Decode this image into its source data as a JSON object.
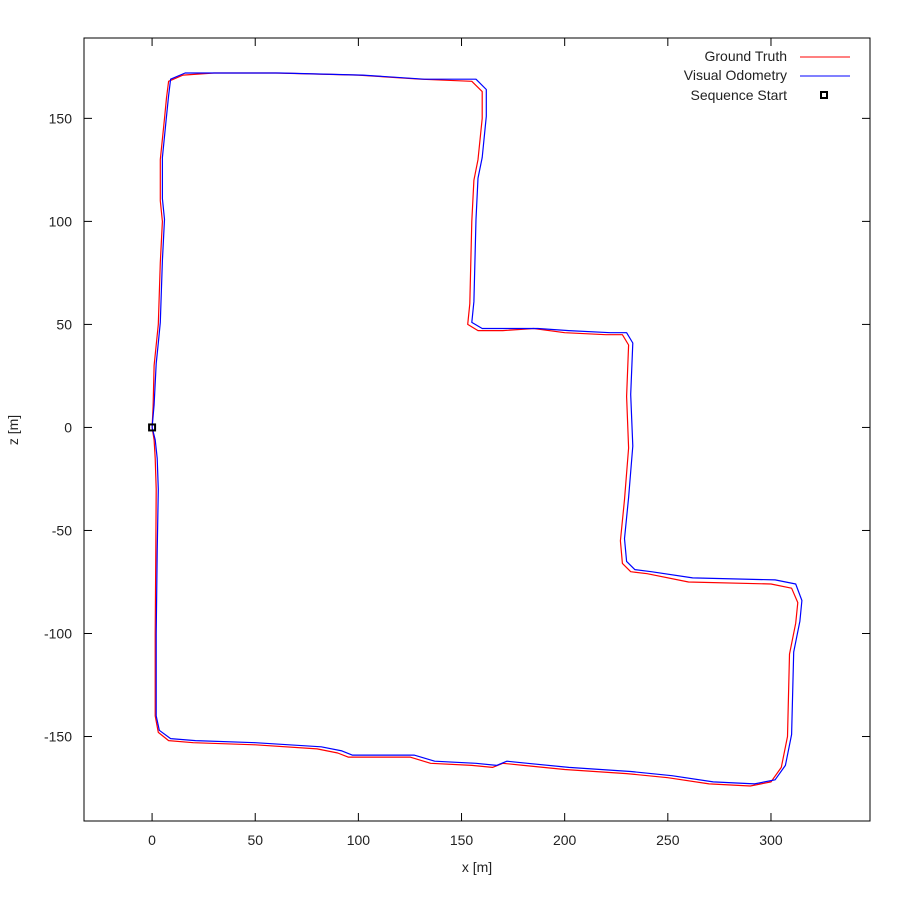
{
  "chart_data": {
    "type": "line",
    "xlabel": "x [m]",
    "ylabel": "z [m]",
    "xlim": [
      -33,
      348
    ],
    "ylim": [
      -191,
      189
    ],
    "x_ticks": [
      0,
      50,
      100,
      150,
      200,
      250,
      300
    ],
    "y_ticks": [
      -150,
      -100,
      -50,
      0,
      50,
      100,
      150
    ],
    "x_tick_labels": [
      "0",
      "50",
      "100",
      "150",
      "200",
      "250",
      "300"
    ],
    "y_tick_labels": [
      "-150",
      "-100",
      "-50",
      "0",
      "50",
      "100",
      "150"
    ],
    "grid": false,
    "legend_position": "top-right",
    "series": [
      {
        "name": "Ground Truth",
        "color": "#ff0000",
        "points": [
          [
            0,
            0
          ],
          [
            1,
            -6
          ],
          [
            1.5,
            -15
          ],
          [
            2,
            -30
          ],
          [
            1.8,
            -60
          ],
          [
            1.5,
            -100
          ],
          [
            1.5,
            -140
          ],
          [
            3,
            -148
          ],
          [
            8,
            -152
          ],
          [
            20,
            -153
          ],
          [
            50,
            -154
          ],
          [
            80,
            -156
          ],
          [
            90,
            -158
          ],
          [
            95,
            -160
          ],
          [
            105,
            -160
          ],
          [
            125,
            -160
          ],
          [
            135,
            -163
          ],
          [
            155,
            -164
          ],
          [
            165,
            -165
          ],
          [
            170,
            -163
          ],
          [
            180,
            -164
          ],
          [
            200,
            -166
          ],
          [
            230,
            -168
          ],
          [
            250,
            -170
          ],
          [
            270,
            -173
          ],
          [
            290,
            -174
          ],
          [
            300,
            -172
          ],
          [
            305,
            -165
          ],
          [
            308,
            -150
          ],
          [
            309,
            -110
          ],
          [
            312,
            -95
          ],
          [
            313,
            -85
          ],
          [
            310,
            -78
          ],
          [
            300,
            -76
          ],
          [
            260,
            -75
          ],
          [
            240,
            -71
          ],
          [
            232,
            -70
          ],
          [
            228,
            -66
          ],
          [
            227,
            -55
          ],
          [
            229,
            -35
          ],
          [
            231,
            -10
          ],
          [
            230,
            15
          ],
          [
            231,
            40
          ],
          [
            228,
            45
          ],
          [
            220,
            45
          ],
          [
            200,
            46
          ],
          [
            185,
            48
          ],
          [
            170,
            47
          ],
          [
            158,
            47
          ],
          [
            153,
            50
          ],
          [
            154,
            60
          ],
          [
            155,
            100
          ],
          [
            156,
            120
          ],
          [
            158,
            130
          ],
          [
            160,
            150
          ],
          [
            160,
            163
          ],
          [
            155,
            168
          ],
          [
            130,
            169
          ],
          [
            100,
            171
          ],
          [
            60,
            172
          ],
          [
            30,
            172
          ],
          [
            15,
            171
          ],
          [
            8,
            168
          ],
          [
            7,
            160
          ],
          [
            6,
            150
          ],
          [
            4,
            130
          ],
          [
            4,
            110
          ],
          [
            5,
            100
          ],
          [
            4,
            80
          ],
          [
            3,
            50
          ],
          [
            2,
            40
          ],
          [
            1,
            30
          ],
          [
            0.5,
            10
          ],
          [
            0,
            0
          ]
        ]
      },
      {
        "name": "Visual Odometry",
        "color": "#0000ff",
        "points": [
          [
            0,
            0
          ],
          [
            1.5,
            -6
          ],
          [
            2.5,
            -15
          ],
          [
            3,
            -30
          ],
          [
            2.5,
            -60
          ],
          [
            2,
            -100
          ],
          [
            2,
            -140
          ],
          [
            3.5,
            -147
          ],
          [
            9,
            -151
          ],
          [
            21,
            -152
          ],
          [
            50,
            -153
          ],
          [
            82,
            -155
          ],
          [
            92,
            -157
          ],
          [
            97,
            -159
          ],
          [
            107,
            -159
          ],
          [
            127,
            -159
          ],
          [
            137,
            -162
          ],
          [
            157,
            -163
          ],
          [
            167,
            -164
          ],
          [
            172,
            -162
          ],
          [
            182,
            -163
          ],
          [
            202,
            -165
          ],
          [
            232,
            -167
          ],
          [
            252,
            -169
          ],
          [
            272,
            -172
          ],
          [
            292,
            -173
          ],
          [
            302,
            -171
          ],
          [
            307,
            -164
          ],
          [
            310,
            -149
          ],
          [
            311,
            -109
          ],
          [
            314,
            -94
          ],
          [
            315,
            -84
          ],
          [
            312,
            -76
          ],
          [
            302,
            -74
          ],
          [
            262,
            -73
          ],
          [
            242,
            -70
          ],
          [
            234,
            -69
          ],
          [
            230,
            -65
          ],
          [
            229,
            -54
          ],
          [
            231,
            -34
          ],
          [
            233,
            -9
          ],
          [
            232,
            16
          ],
          [
            233,
            41
          ],
          [
            230,
            46
          ],
          [
            222,
            46
          ],
          [
            202,
            47
          ],
          [
            187,
            48
          ],
          [
            172,
            48
          ],
          [
            160,
            48
          ],
          [
            155,
            51
          ],
          [
            156,
            61
          ],
          [
            157,
            101
          ],
          [
            158,
            121
          ],
          [
            160,
            131
          ],
          [
            162,
            151
          ],
          [
            162,
            164
          ],
          [
            157,
            169
          ],
          [
            132,
            169
          ],
          [
            102,
            171
          ],
          [
            62,
            172
          ],
          [
            32,
            172
          ],
          [
            16,
            172
          ],
          [
            9,
            169
          ],
          [
            8,
            161
          ],
          [
            7,
            151
          ],
          [
            5,
            131
          ],
          [
            5,
            111
          ],
          [
            6,
            101
          ],
          [
            5,
            81
          ],
          [
            4,
            51
          ],
          [
            3,
            41
          ],
          [
            2,
            31
          ],
          [
            1,
            11
          ],
          [
            0,
            0
          ]
        ]
      }
    ],
    "markers": [
      {
        "name": "Sequence Start",
        "x": 0,
        "y": 0,
        "shape": "square",
        "color": "#000000"
      }
    ]
  }
}
